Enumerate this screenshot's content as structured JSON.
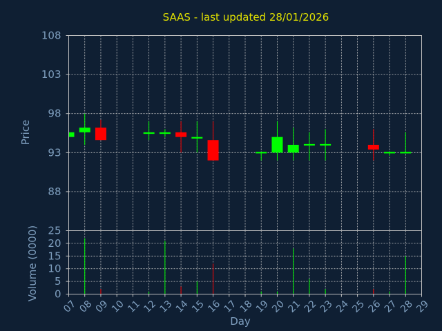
{
  "chart_data": {
    "type": "candlestick",
    "title": "SAAS - last updated 28/01/2026",
    "xlabel": "Day",
    "ylabel": "Price",
    "volume_label": "Volume (0000)",
    "grid": true,
    "colors": {
      "background": "#0f1f33",
      "plot_border": "#c0c0c0",
      "grid": "#c8c8c8",
      "up": "#00ff00",
      "down": "#ff0000",
      "title": "#e0e000",
      "text": "#7f9fbf"
    },
    "x_ticks": [
      "07",
      "08",
      "09",
      "10",
      "11",
      "12",
      "13",
      "14",
      "15",
      "16",
      "17",
      "18",
      "19",
      "20",
      "21",
      "22",
      "23",
      "24",
      "25",
      "26",
      "27",
      "28",
      "29"
    ],
    "price_axis": {
      "ylim": [
        83,
        108
      ],
      "ticks": [
        88,
        93,
        98,
        103,
        108
      ]
    },
    "volume_axis": {
      "ylim": [
        0,
        25
      ],
      "ticks": [
        0,
        5,
        10,
        15,
        20,
        25
      ]
    },
    "candles": [
      {
        "day": "07",
        "open": 95.0,
        "close": 95.6,
        "high": 95.6,
        "low": 95.0,
        "volume": 0
      },
      {
        "day": "08",
        "open": 95.6,
        "close": 96.2,
        "high": 98.0,
        "low": 94.0,
        "volume": 22
      },
      {
        "day": "09",
        "open": 96.2,
        "close": 94.6,
        "high": 97.2,
        "low": 94.6,
        "volume": 2
      },
      {
        "day": "12",
        "open": 95.4,
        "close": 95.6,
        "high": 97.0,
        "low": 94.6,
        "volume": 1
      },
      {
        "day": "13",
        "open": 95.4,
        "close": 95.6,
        "high": 96.0,
        "low": 95.0,
        "volume": 21
      },
      {
        "day": "14",
        "open": 95.6,
        "close": 95.0,
        "high": 97.0,
        "low": 93.0,
        "volume": 3
      },
      {
        "day": "15",
        "open": 94.8,
        "close": 95.0,
        "high": 97.0,
        "low": 93.0,
        "volume": 5
      },
      {
        "day": "16",
        "open": 94.6,
        "close": 92.0,
        "high": 97.0,
        "low": 92.0,
        "volume": 12
      },
      {
        "day": "19",
        "open": 92.9,
        "close": 93.1,
        "high": 93.1,
        "low": 92.0,
        "volume": 1
      },
      {
        "day": "20",
        "open": 93.0,
        "close": 95.0,
        "high": 97.0,
        "low": 92.0,
        "volume": 1
      },
      {
        "day": "21",
        "open": 93.0,
        "close": 94.0,
        "high": 96.2,
        "low": 92.0,
        "volume": 18
      },
      {
        "day": "22",
        "open": 93.9,
        "close": 94.1,
        "high": 95.6,
        "low": 92.0,
        "volume": 6
      },
      {
        "day": "23",
        "open": 93.9,
        "close": 94.1,
        "high": 96.0,
        "low": 92.0,
        "volume": 2
      },
      {
        "day": "26",
        "open": 94.0,
        "close": 93.4,
        "high": 96.0,
        "low": 92.0,
        "volume": 2
      },
      {
        "day": "27",
        "open": 92.9,
        "close": 93.1,
        "high": 93.1,
        "low": 92.6,
        "volume": 1
      },
      {
        "day": "28",
        "open": 92.9,
        "close": 93.1,
        "high": 95.6,
        "low": 92.9,
        "volume": 15
      }
    ]
  }
}
